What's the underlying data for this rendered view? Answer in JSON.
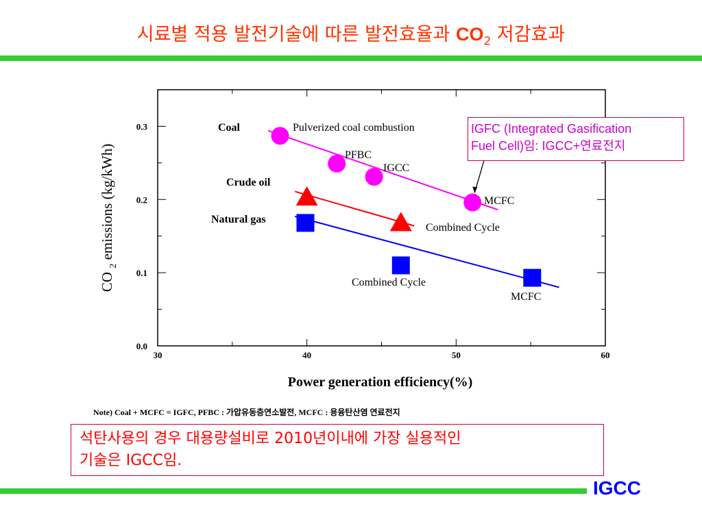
{
  "slide": {
    "title_pre": "시료별 적용 발전기술에 따른 발전효율과 ",
    "title_co": "CO",
    "title_sub": "2",
    "title_post": " 저감효과",
    "callout_line1": "IGFC (Integrated Gasification",
    "callout_line2": "Fuel Cell)임: IGCC+연료전지",
    "note": "Note) Coal + MCFC = IGFC, PFBC : 가압유동층연소발전, MCFC : 용융탄산염 연료전지",
    "summary_line1": "석탄사용의 경우 대용량설비로 2010년이내에 가장 실용적인",
    "summary_line2": "기술은 IGCC임.",
    "footer_tag": "IGCC",
    "colors": {
      "title": "#ff3300",
      "bar": "#33cc33",
      "coal": "#ff00ff",
      "oil": "#ff0000",
      "gas": "#0000ff",
      "box_border": "#cc0033"
    }
  },
  "chart_data": {
    "type": "scatter",
    "xlabel": "Power generation efficiency(%)",
    "ylabel_co": "CO",
    "ylabel_sub": "2",
    "ylabel_rest": "emissions (kg/kWh)",
    "xlim": [
      30,
      60
    ],
    "ylim": [
      0.0,
      0.35
    ],
    "xticks": [
      30,
      40,
      50,
      60
    ],
    "xtick_labels": [
      "30",
      "40",
      "50",
      "60"
    ],
    "yticks": [
      0.0,
      0.1,
      0.2,
      0.3
    ],
    "ytick_labels": [
      "0.0",
      "0.1",
      "0.2",
      "0.3"
    ],
    "series": [
      {
        "name": "Coal",
        "marker": "circle",
        "color": "#ff00ff",
        "points": [
          {
            "x": 38.2,
            "y": 0.287,
            "label": "Pulverized coal combustion"
          },
          {
            "x": 42.0,
            "y": 0.249,
            "label": "PFBC"
          },
          {
            "x": 44.5,
            "y": 0.231,
            "label": "IGCC"
          },
          {
            "x": 51.1,
            "y": 0.196,
            "label": "MCFC"
          }
        ],
        "fit": [
          [
            37.4,
            0.294
          ],
          [
            52.8,
            0.186
          ]
        ]
      },
      {
        "name": "Crude oil",
        "marker": "triangle",
        "color": "#ff0000",
        "points": [
          {
            "x": 40.0,
            "y": 0.203,
            "label": ""
          },
          {
            "x": 46.3,
            "y": 0.168,
            "label": "Combined Cycle"
          }
        ],
        "fit": [
          [
            39.2,
            0.211
          ],
          [
            47.2,
            0.164
          ]
        ]
      },
      {
        "name": "Natural gas",
        "marker": "square",
        "color": "#0000ff",
        "points": [
          {
            "x": 39.9,
            "y": 0.168,
            "label": ""
          },
          {
            "x": 46.3,
            "y": 0.11,
            "label": "Combined Cycle"
          },
          {
            "x": 55.1,
            "y": 0.093,
            "label": "MCFC"
          }
        ],
        "fit": [
          [
            39.2,
            0.177
          ],
          [
            56.9,
            0.08
          ]
        ]
      }
    ]
  }
}
